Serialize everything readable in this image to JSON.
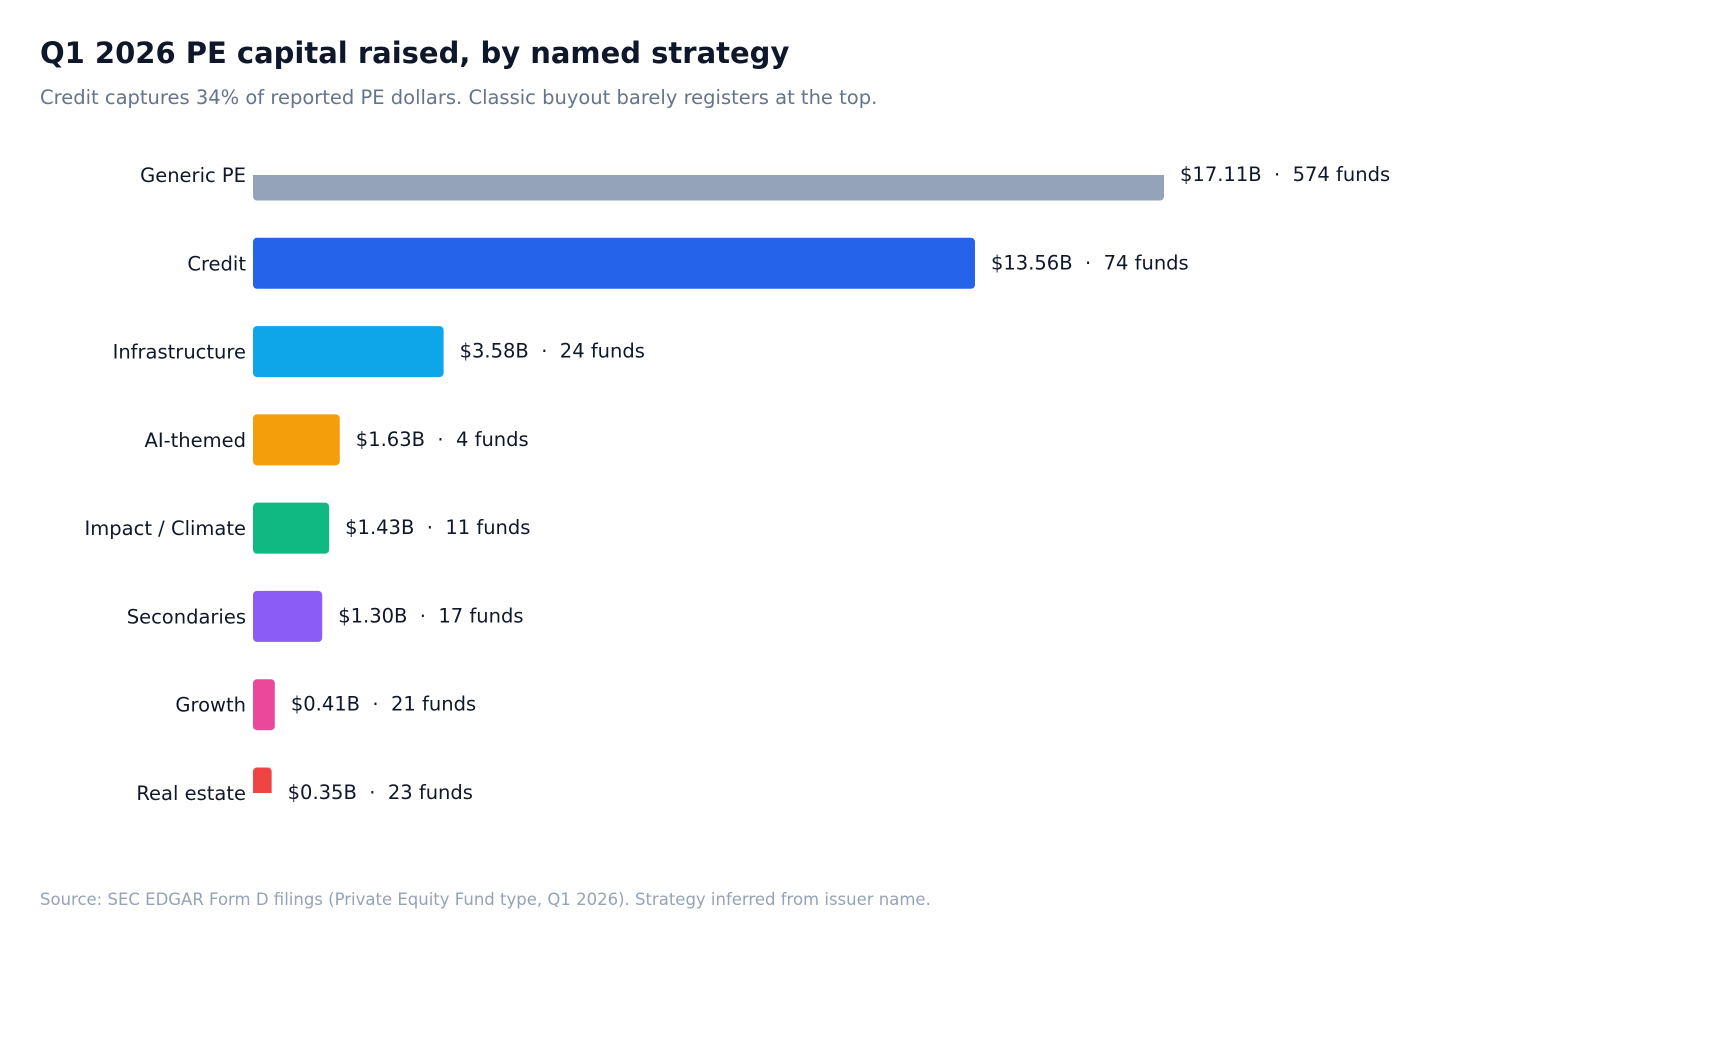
{
  "chart_data": {
    "type": "bar",
    "orientation": "horizontal",
    "title": "Q1 2026 PE capital raised, by named strategy",
    "subtitle": "Credit captures 34% of reported PE dollars. Classic buyout barely registers at the top.",
    "source": "Source: SEC EDGAR Form D filings (Private Equity Fund type, Q1 2026). Strategy inferred from issuer name.",
    "categories": [
      "Generic PE",
      "Credit",
      "Infrastructure",
      "AI-themed",
      "Impact / Climate",
      "Secondaries",
      "Growth",
      "Real estate"
    ],
    "values": [
      17.11,
      13.56,
      3.58,
      1.63,
      1.43,
      1.3,
      0.41,
      0.35
    ],
    "unit": "$B",
    "fund_counts": [
      574,
      74,
      24,
      4,
      11,
      17,
      21,
      23
    ],
    "data_labels": [
      "$17.11B  ·  574 funds",
      "$13.56B  ·  74 funds",
      "$3.58B  ·  24 funds",
      "$1.63B  ·  4 funds",
      "$1.43B  ·  11 funds",
      "$1.30B  ·  17 funds",
      "$0.41B  ·  21 funds",
      "$0.35B  ·  23 funds"
    ],
    "colors": [
      "#94a3b8",
      "#2563eb",
      "#0ea5e9",
      "#f59e0b",
      "#10b981",
      "#8b5cf6",
      "#ec4899",
      "#ef4444"
    ],
    "grid": false,
    "xaxis_visible": false
  }
}
